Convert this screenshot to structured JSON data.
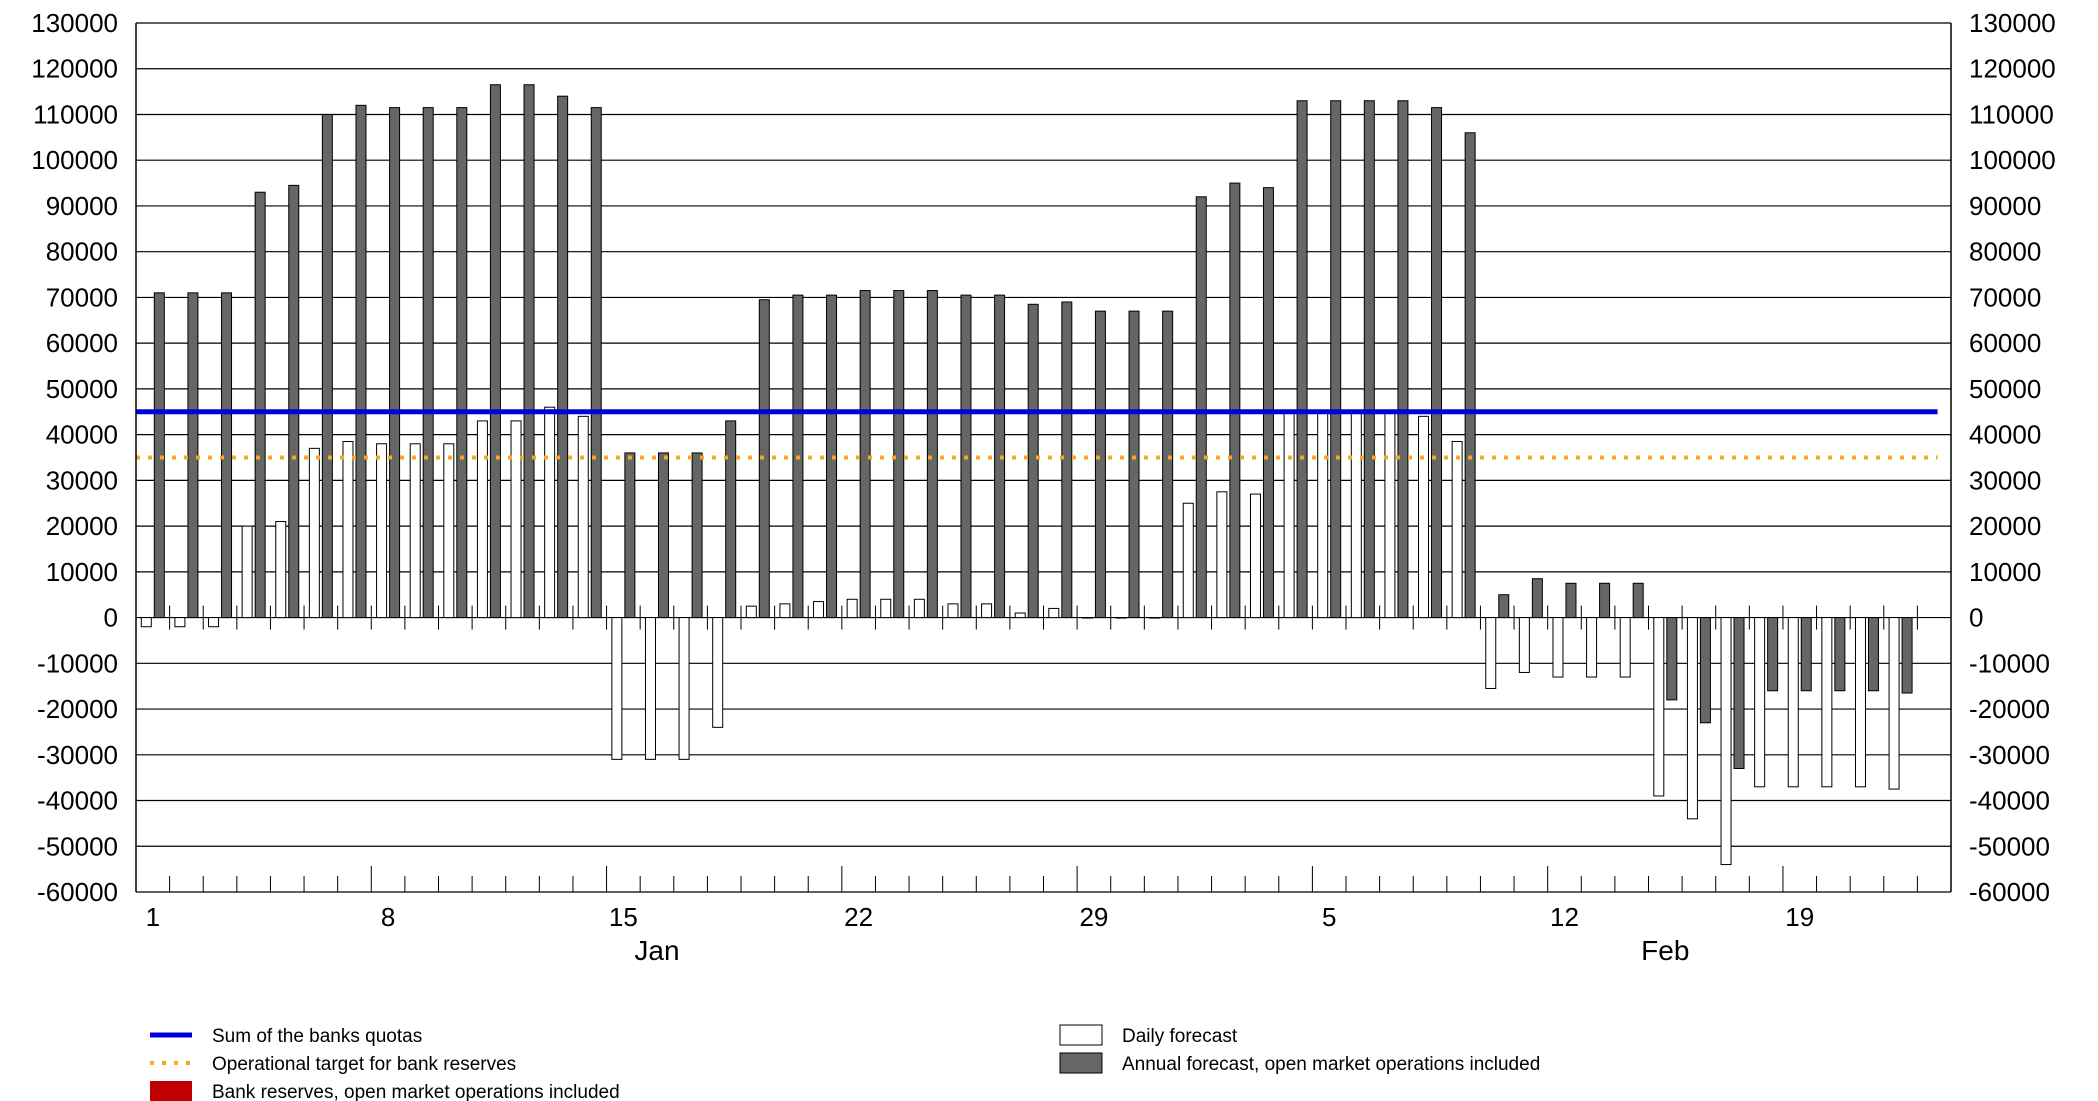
{
  "chart_data": {
    "type": "bar",
    "title": "",
    "xlabel": "",
    "ylabel": "",
    "ylim": [
      -60000,
      130000
    ],
    "y_tick_step": 10000,
    "grid": "horizontal",
    "legend_position": "bottom",
    "x_tick_labels": [
      {
        "label": "1",
        "day": 1
      },
      {
        "label": "8",
        "day": 8
      },
      {
        "label": "15",
        "day": 15
      },
      {
        "label": "22",
        "day": 22
      },
      {
        "label": "29",
        "day": 29
      },
      {
        "label": "5",
        "day": 36
      },
      {
        "label": "12",
        "day": 43
      },
      {
        "label": "19",
        "day": 50
      }
    ],
    "month_labels": [
      {
        "label": "Jan",
        "day": 16
      },
      {
        "label": "Feb",
        "day": 46
      }
    ],
    "x_range_days": [
      1,
      54
    ],
    "series": [
      {
        "name": "Daily forecast",
        "kind": "bar",
        "color": "#ffffff",
        "values": [
          -2000,
          -2000,
          -2000,
          20000,
          21000,
          37000,
          38500,
          38000,
          38000,
          38000,
          43000,
          43000,
          46000,
          44000,
          -31000,
          -31000,
          -31000,
          -24000,
          2500,
          3000,
          3500,
          4000,
          4000,
          4000,
          3000,
          3000,
          1000,
          2000,
          0,
          0,
          0,
          25000,
          27500,
          27000,
          45000,
          45000,
          45000,
          45000,
          44000,
          38500,
          -15500,
          -12000,
          -13000,
          -13000,
          -13000,
          -39000,
          -44000,
          -54000,
          -37000,
          -37000,
          -37000,
          -37000,
          -37500
        ]
      },
      {
        "name": "Annual forecast, open market operations included",
        "kind": "bar",
        "color": "#666666",
        "values": [
          71000,
          71000,
          71000,
          93000,
          94500,
          110000,
          112000,
          111500,
          111500,
          111500,
          116500,
          116500,
          114000,
          111500,
          36000,
          36000,
          36000,
          43000,
          69500,
          70500,
          70500,
          71500,
          71500,
          71500,
          70500,
          70500,
          68500,
          69000,
          67000,
          67000,
          67000,
          92000,
          95000,
          94000,
          113000,
          113000,
          113000,
          113000,
          111500,
          106000,
          5000,
          8500,
          7500,
          7500,
          7500,
          -18000,
          -23000,
          -33000,
          -16000,
          -16000,
          -16000,
          -16000,
          -16500
        ]
      }
    ],
    "reference_lines": [
      {
        "name": "Sum of the banks quotas",
        "value": 45000,
        "color": "#0000dd",
        "style": "solid"
      },
      {
        "name": "Operational target for bank reserves",
        "value": 35000,
        "color": "#f5a623",
        "style": "dotted"
      }
    ]
  },
  "legend": {
    "items": [
      {
        "label": "Sum of the banks quotas",
        "kind": "solid-line",
        "color": "#0000dd"
      },
      {
        "label": "Operational target for bank reserves",
        "kind": "dotted-line",
        "color": "#f5a623"
      },
      {
        "label": "Bank reserves, open market operations included",
        "kind": "box",
        "color": "#c00000"
      },
      {
        "label": "Daily forecast",
        "kind": "box",
        "color": "#ffffff"
      },
      {
        "label": "Annual forecast, open market operations included",
        "kind": "box",
        "color": "#666666"
      }
    ]
  }
}
